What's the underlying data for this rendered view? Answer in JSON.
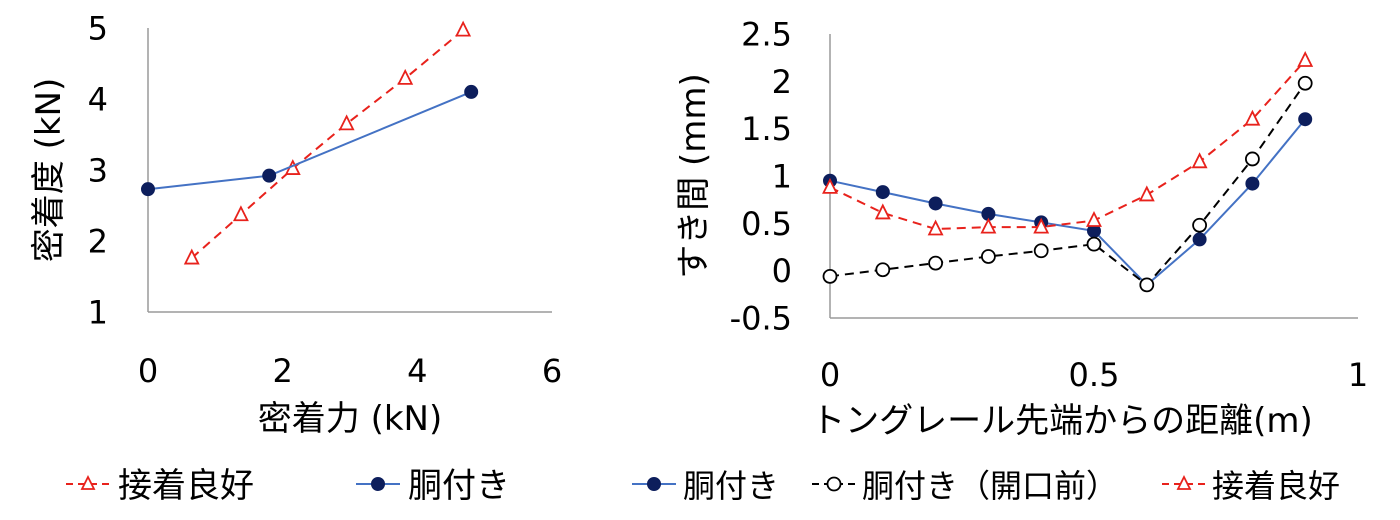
{
  "chart_data": [
    {
      "type": "line",
      "xlabel": "密着力 (kN)",
      "ylabel": "密着度 (kN)",
      "xlim": [
        0,
        6
      ],
      "ylim": [
        1,
        5
      ],
      "xticks": [
        "0",
        "2",
        "4",
        "6"
      ],
      "yticks": [
        "1",
        "2",
        "3",
        "4",
        "5"
      ],
      "grid": false,
      "legend_position": "bottom",
      "series": [
        {
          "name": "接着良好",
          "color": "#e8221c",
          "dash": true,
          "marker": "open-triangle",
          "points": [
            [
              0.65,
              1.76
            ],
            [
              1.38,
              2.37
            ],
            [
              2.15,
              3.02
            ],
            [
              2.95,
              3.65
            ],
            [
              3.82,
              4.29
            ],
            [
              4.68,
              4.97
            ]
          ]
        },
        {
          "name": "胴付き",
          "color": "#4472c4",
          "marker_color": "#0d1e5c",
          "dash": false,
          "marker": "filled-circle",
          "points": [
            [
              0.0,
              2.73
            ],
            [
              1.8,
              2.92
            ],
            [
              4.8,
              4.1
            ]
          ]
        }
      ]
    },
    {
      "type": "line",
      "xlabel": "トングレール先端からの距離(m)",
      "ylabel": "すき間 (mm)",
      "xlim": [
        0,
        1
      ],
      "ylim": [
        -0.5,
        2.5
      ],
      "xticks": [
        "0",
        "0.5",
        "1"
      ],
      "yticks": [
        "-0.5",
        "0",
        "0.5",
        "1",
        "1.5",
        "2",
        "2.5"
      ],
      "grid": false,
      "legend_position": "bottom",
      "series": [
        {
          "name": "胴付き",
          "color": "#4472c4",
          "marker_color": "#0d1e5c",
          "dash": false,
          "marker": "filled-circle",
          "points": [
            [
              0.0,
              0.95
            ],
            [
              0.1,
              0.83
            ],
            [
              0.2,
              0.71
            ],
            [
              0.3,
              0.6
            ],
            [
              0.4,
              0.51
            ],
            [
              0.5,
              0.42
            ],
            [
              0.6,
              -0.15
            ],
            [
              0.7,
              0.33
            ],
            [
              0.8,
              0.92
            ],
            [
              0.9,
              1.6
            ]
          ]
        },
        {
          "name": "胴付き（開口前）",
          "color": "#000000",
          "dash": true,
          "marker": "open-circle",
          "points": [
            [
              0.0,
              -0.06
            ],
            [
              0.1,
              0.01
            ],
            [
              0.2,
              0.08
            ],
            [
              0.3,
              0.15
            ],
            [
              0.4,
              0.21
            ],
            [
              0.5,
              0.28
            ],
            [
              0.6,
              -0.15
            ],
            [
              0.7,
              0.48
            ],
            [
              0.8,
              1.18
            ],
            [
              0.9,
              1.98
            ]
          ]
        },
        {
          "name": "接着良好",
          "color": "#e8221c",
          "dash": true,
          "marker": "open-triangle",
          "points": [
            [
              0.0,
              0.88
            ],
            [
              0.1,
              0.61
            ],
            [
              0.2,
              0.44
            ],
            [
              0.3,
              0.46
            ],
            [
              0.4,
              0.46
            ],
            [
              0.5,
              0.53
            ],
            [
              0.6,
              0.8
            ],
            [
              0.7,
              1.15
            ],
            [
              0.8,
              1.6
            ],
            [
              0.9,
              2.22
            ]
          ]
        }
      ]
    }
  ]
}
